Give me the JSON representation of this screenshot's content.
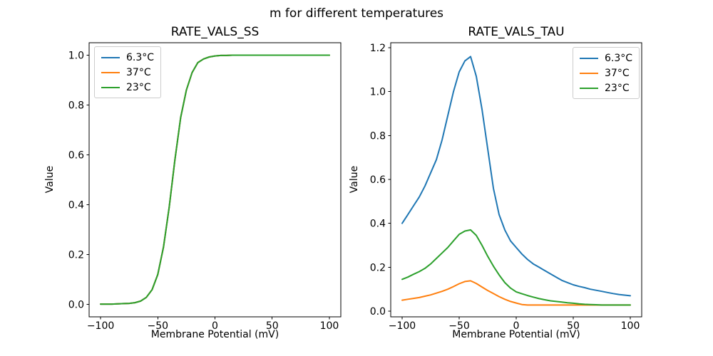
{
  "figure": {
    "suptitle": "m for different temperatures",
    "background": "#ffffff",
    "text_color": "#000000"
  },
  "palette": {
    "blue": "#1f77b4",
    "orange": "#ff7f0e",
    "green": "#2ca02c"
  },
  "chart_data": [
    {
      "type": "line",
      "title": "RATE_VALS_SS",
      "xlabel": "Membrane Potential (mV)",
      "ylabel": "Value",
      "xlim": [
        -110,
        110
      ],
      "ylim": [
        -0.05,
        1.05
      ],
      "xticks": [
        -100,
        -50,
        0,
        50,
        100
      ],
      "xtick_labels": [
        "−100",
        "−50",
        "0",
        "50",
        "100"
      ],
      "yticks": [
        0,
        0.2,
        0.4,
        0.6,
        0.8,
        1.0
      ],
      "ytick_labels": [
        "0.0",
        "0.2",
        "0.4",
        "0.6",
        "0.8",
        "1.0"
      ],
      "grid": false,
      "legend_position": "upper-left",
      "note": "Steady-state sigmoid; all three temperature curves coincide exactly, so only the last-drawn green 23°C curve is visible.",
      "x": [
        -100,
        -95,
        -90,
        -85,
        -80,
        -75,
        -70,
        -65,
        -60,
        -55,
        -50,
        -45,
        -40,
        -35,
        -30,
        -25,
        -20,
        -15,
        -10,
        -5,
        0,
        5,
        10,
        15,
        20,
        25,
        30,
        35,
        40,
        45,
        50,
        55,
        60,
        65,
        70,
        75,
        80,
        85,
        90,
        95,
        100
      ],
      "series": [
        {
          "name": "6.3°C",
          "color": "#1f77b4",
          "values": [
            0.001,
            0.001,
            0.001,
            0.002,
            0.003,
            0.004,
            0.007,
            0.013,
            0.028,
            0.059,
            0.12,
            0.23,
            0.39,
            0.58,
            0.75,
            0.86,
            0.93,
            0.97,
            0.985,
            0.993,
            0.997,
            0.999,
            0.999,
            1.0,
            1.0,
            1.0,
            1.0,
            1.0,
            1.0,
            1.0,
            1.0,
            1.0,
            1.0,
            1.0,
            1.0,
            1.0,
            1.0,
            1.0,
            1.0,
            1.0,
            1.0
          ]
        },
        {
          "name": "37°C",
          "color": "#ff7f0e",
          "values": [
            0.001,
            0.001,
            0.001,
            0.002,
            0.003,
            0.004,
            0.007,
            0.013,
            0.028,
            0.059,
            0.12,
            0.23,
            0.39,
            0.58,
            0.75,
            0.86,
            0.93,
            0.97,
            0.985,
            0.993,
            0.997,
            0.999,
            0.999,
            1.0,
            1.0,
            1.0,
            1.0,
            1.0,
            1.0,
            1.0,
            1.0,
            1.0,
            1.0,
            1.0,
            1.0,
            1.0,
            1.0,
            1.0,
            1.0,
            1.0,
            1.0
          ]
        },
        {
          "name": "23°C",
          "color": "#2ca02c",
          "values": [
            0.001,
            0.001,
            0.001,
            0.002,
            0.003,
            0.004,
            0.007,
            0.013,
            0.028,
            0.059,
            0.12,
            0.23,
            0.39,
            0.58,
            0.75,
            0.86,
            0.93,
            0.97,
            0.985,
            0.993,
            0.997,
            0.999,
            0.999,
            1.0,
            1.0,
            1.0,
            1.0,
            1.0,
            1.0,
            1.0,
            1.0,
            1.0,
            1.0,
            1.0,
            1.0,
            1.0,
            1.0,
            1.0,
            1.0,
            1.0,
            1.0
          ]
        }
      ]
    },
    {
      "type": "line",
      "title": "RATE_VALS_TAU",
      "xlabel": "Membrane Potential (mV)",
      "ylabel": "Value",
      "xlim": [
        -110,
        110
      ],
      "ylim": [
        -0.026,
        1.223
      ],
      "xticks": [
        -100,
        -50,
        0,
        50,
        100
      ],
      "xtick_labels": [
        "−100",
        "−50",
        "0",
        "50",
        "100"
      ],
      "yticks": [
        0,
        0.2,
        0.4,
        0.6,
        0.8,
        1.0,
        1.2
      ],
      "ytick_labels": [
        "0.0",
        "0.2",
        "0.4",
        "0.6",
        "0.8",
        "1.0",
        "1.2"
      ],
      "grid": false,
      "legend_position": "upper-right",
      "note": "Time-constant curves peak near −43 mV: 6.3°C ≈ 1.16, 23°C ≈ 0.37, 37°C ≈ 0.14; 37°C and 23°C flatten to ≈ 0.028 at depolarized potentials.",
      "x": [
        -100,
        -95,
        -90,
        -85,
        -80,
        -75,
        -70,
        -65,
        -60,
        -55,
        -50,
        -45,
        -40,
        -35,
        -30,
        -25,
        -20,
        -15,
        -10,
        -5,
        0,
        5,
        10,
        15,
        20,
        25,
        30,
        35,
        40,
        45,
        50,
        55,
        60,
        65,
        70,
        75,
        80,
        85,
        90,
        95,
        100
      ],
      "series": [
        {
          "name": "6.3°C",
          "color": "#1f77b4",
          "values": [
            0.4,
            0.44,
            0.48,
            0.52,
            0.57,
            0.63,
            0.69,
            0.78,
            0.89,
            1.0,
            1.09,
            1.14,
            1.16,
            1.07,
            0.92,
            0.74,
            0.56,
            0.44,
            0.37,
            0.32,
            0.29,
            0.26,
            0.235,
            0.215,
            0.2,
            0.185,
            0.17,
            0.155,
            0.14,
            0.13,
            0.12,
            0.113,
            0.107,
            0.1,
            0.095,
            0.09,
            0.085,
            0.08,
            0.076,
            0.073,
            0.07
          ]
        },
        {
          "name": "37°C",
          "color": "#ff7f0e",
          "values": [
            0.05,
            0.054,
            0.058,
            0.062,
            0.068,
            0.074,
            0.082,
            0.09,
            0.1,
            0.112,
            0.125,
            0.135,
            0.138,
            0.126,
            0.11,
            0.094,
            0.08,
            0.066,
            0.054,
            0.044,
            0.037,
            0.03,
            0.028,
            0.028,
            0.028,
            0.028,
            0.028,
            0.028,
            0.028,
            0.028,
            0.028,
            0.028,
            0.028,
            0.028,
            0.028,
            0.028,
            0.028,
            0.028,
            0.028,
            0.028,
            0.028
          ]
        },
        {
          "name": "23°C",
          "color": "#2ca02c",
          "values": [
            0.145,
            0.155,
            0.168,
            0.18,
            0.195,
            0.215,
            0.24,
            0.265,
            0.29,
            0.32,
            0.35,
            0.365,
            0.37,
            0.345,
            0.3,
            0.25,
            0.205,
            0.165,
            0.13,
            0.105,
            0.088,
            0.079,
            0.071,
            0.064,
            0.057,
            0.052,
            0.047,
            0.044,
            0.041,
            0.038,
            0.036,
            0.033,
            0.031,
            0.03,
            0.029,
            0.028,
            0.028,
            0.028,
            0.028,
            0.028,
            0.028
          ]
        }
      ]
    }
  ]
}
